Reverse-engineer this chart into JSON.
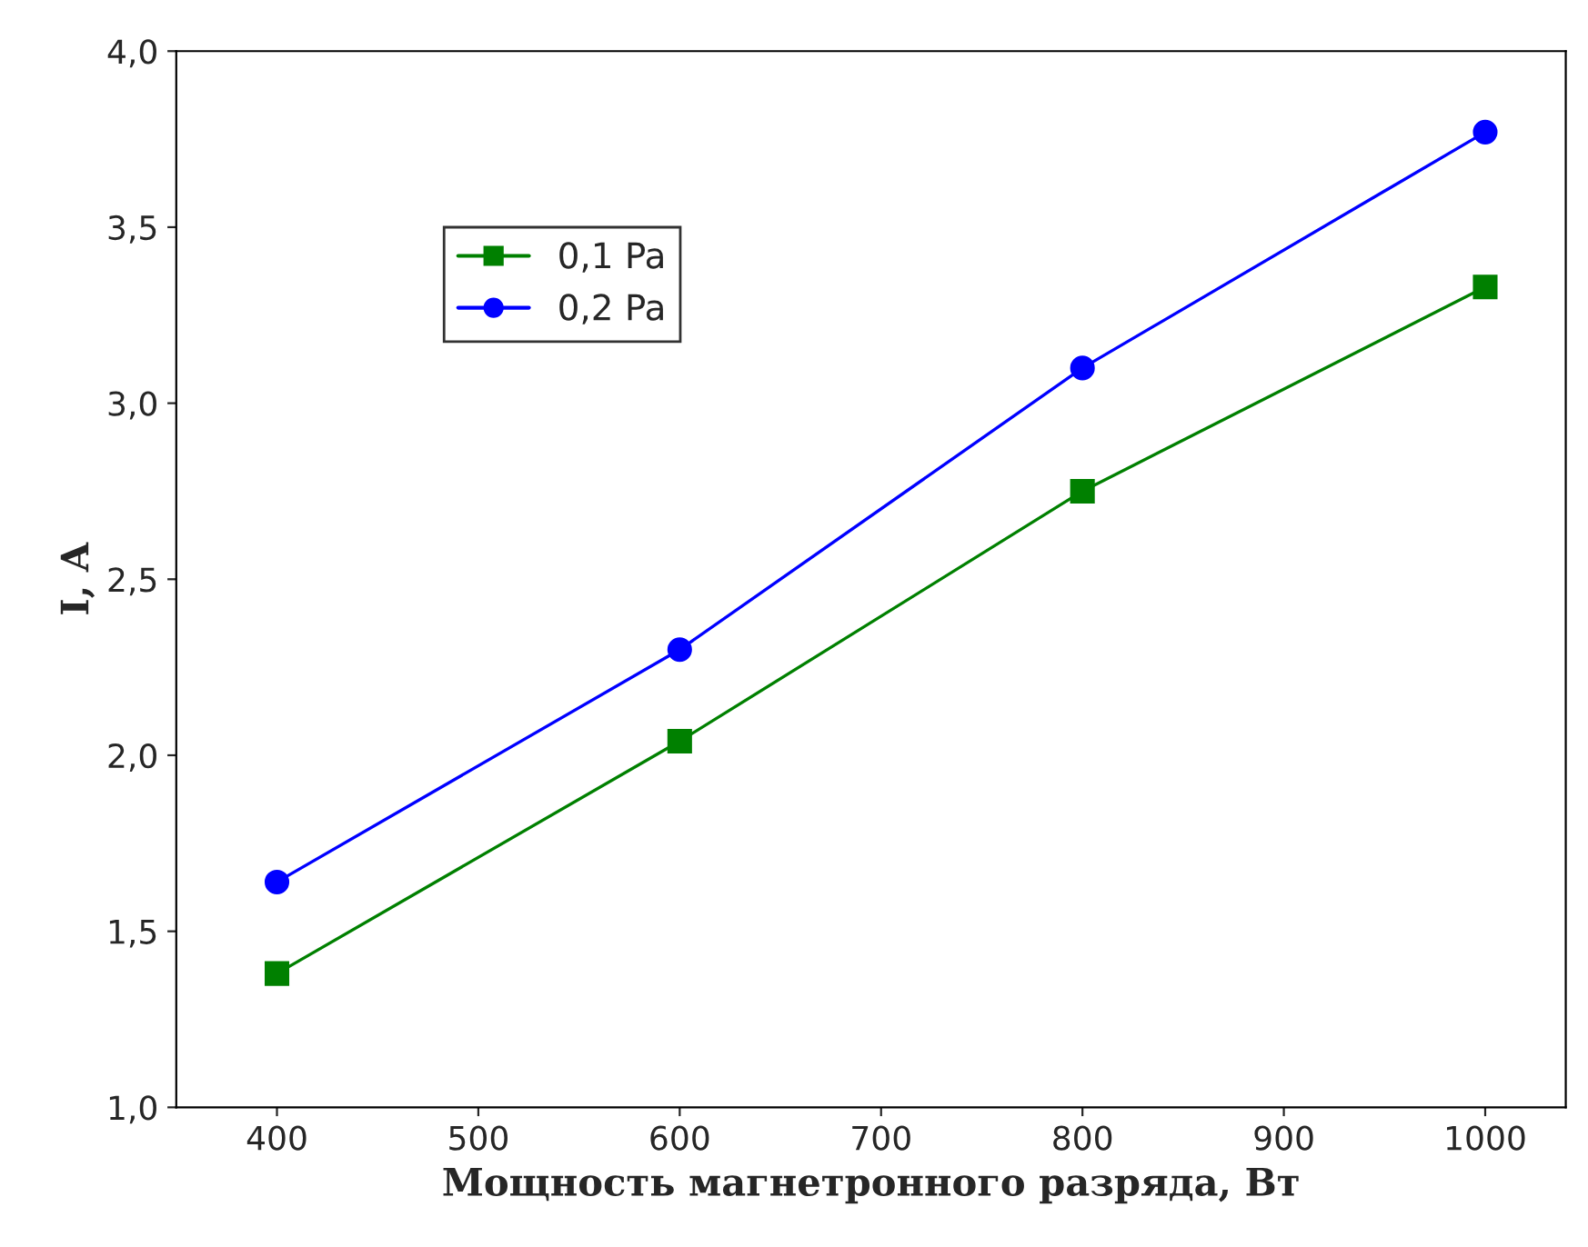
{
  "chart_data": {
    "type": "line",
    "xlabel": "Мощность магнетронного разряда, Вт",
    "ylabel": "I, A",
    "x": [
      400,
      600,
      800,
      1000
    ],
    "series": [
      {
        "name": "0,1 Pa",
        "color": "#008000",
        "marker": "square",
        "values": [
          1.38,
          2.04,
          2.75,
          3.33
        ]
      },
      {
        "name": "0,2 Pa",
        "color": "#0000ff",
        "marker": "circle",
        "values": [
          1.64,
          2.3,
          3.1,
          3.77
        ]
      }
    ],
    "xlim": [
      350,
      1040
    ],
    "xticks": [
      400,
      500,
      600,
      700,
      800,
      900,
      1000
    ],
    "ylim": [
      1.0,
      4.0
    ],
    "yticks": [
      {
        "value": 1.0,
        "label": "1,0"
      },
      {
        "value": 1.5,
        "label": "1,5"
      },
      {
        "value": 2.0,
        "label": "2,0"
      },
      {
        "value": 2.5,
        "label": "2,5"
      },
      {
        "value": 3.0,
        "label": "3,0"
      },
      {
        "value": 3.5,
        "label": "3,5"
      },
      {
        "value": 4.0,
        "label": "4,0"
      }
    ],
    "legend": "top left",
    "grid": false,
    "line_style": "solid"
  }
}
